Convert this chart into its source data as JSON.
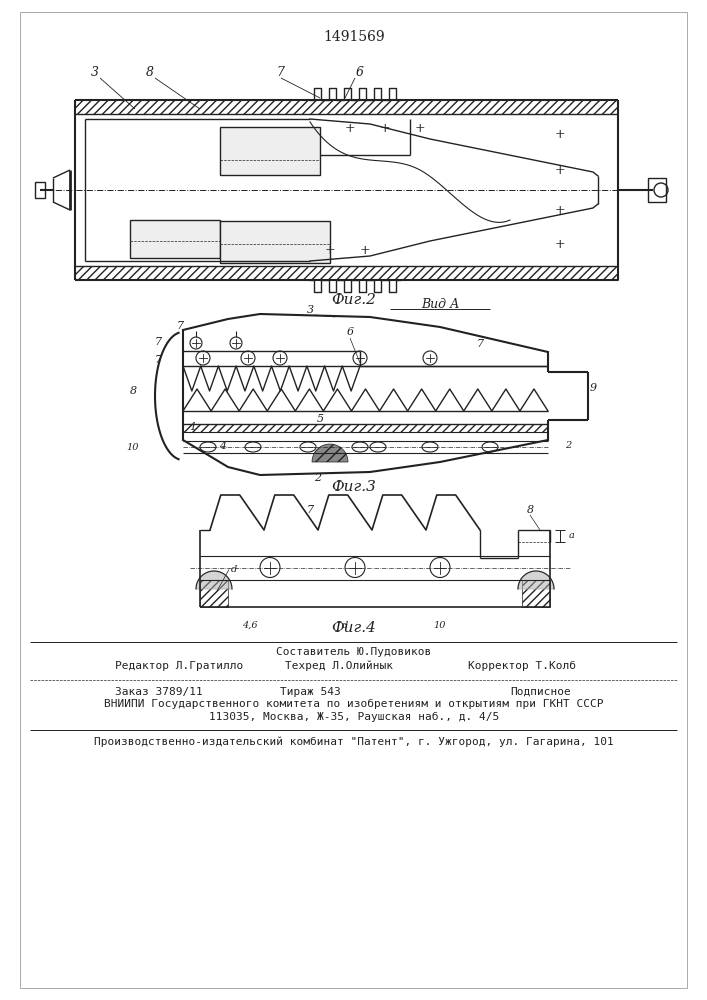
{
  "patent_number": "1491569",
  "fig2_label": "Фиг.2",
  "fig3_label": "Фиг.3",
  "fig4_label": "Фиг.4",
  "vid_label": "Вид А",
  "compiler_line": "Составитель Ю.Пудовиков",
  "editor_label": "Редактор Л.Гратилло",
  "techred_label": "Техред Л.Олийнык",
  "corrector_label": "Корректор Т.Колб",
  "order_label": "Заказ 3789/11",
  "tirazh_label": "Тираж 543",
  "podpis_label": "Подписное",
  "vnipi_line": "ВНИИПИ Государственного комитета по изобретениям и открытиям при ГКНТ СССР",
  "address_line": "113035, Москва, Ж-35, Раушская наб., д. 4/5",
  "factory_line": "Производственно-издательский комбинат \"Патент\", г. Ужгород, ул. Гагарина, 101",
  "bg_color": "#ffffff",
  "line_color": "#222222"
}
